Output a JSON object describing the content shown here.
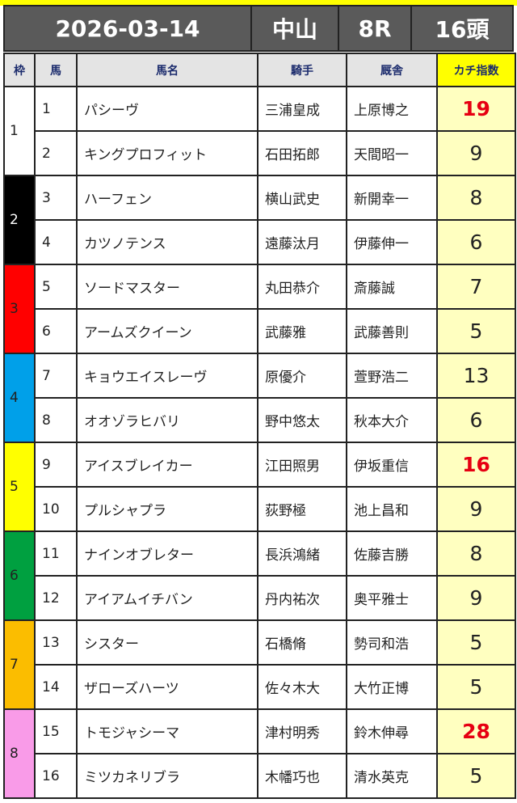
{
  "header": {
    "date": "2026-03-14",
    "venue": "中山",
    "race": "8R",
    "runners": "16頭"
  },
  "columns": {
    "waku": "枠",
    "num": "馬",
    "name": "馬名",
    "jockey": "騎手",
    "trainer": "厩舎",
    "index": "カチ指数"
  },
  "colors": {
    "waku": {
      "1": "#ffffff",
      "2": "#000000",
      "3": "#ff0000",
      "4": "#00a0e9",
      "5": "#ffff00",
      "6": "#00a040",
      "7": "#fbbd00",
      "8": "#f99be8"
    },
    "highlight": "#e60012",
    "index_bg": "#ffffc0"
  },
  "rows": [
    {
      "waku": "1",
      "num": "1",
      "name": "パシーヴ",
      "jockey": "三浦皇成",
      "trainer": "上原博之",
      "index": "19",
      "highlight": true
    },
    {
      "waku": "1",
      "num": "2",
      "name": "キングプロフィット",
      "jockey": "石田拓郎",
      "trainer": "天間昭一",
      "index": "9"
    },
    {
      "waku": "2",
      "num": "3",
      "name": "ハーフェン",
      "jockey": "横山武史",
      "trainer": "新開幸一",
      "index": "8"
    },
    {
      "waku": "2",
      "num": "4",
      "name": "カツノテンス",
      "jockey": "遠藤汰月",
      "trainer": "伊藤伸一",
      "index": "6"
    },
    {
      "waku": "3",
      "num": "5",
      "name": "ソードマスター",
      "jockey": "丸田恭介",
      "trainer": "斎藤誠",
      "index": "7"
    },
    {
      "waku": "3",
      "num": "6",
      "name": "アームズクイーン",
      "jockey": "武藤雅",
      "trainer": "武藤善則",
      "index": "5"
    },
    {
      "waku": "4",
      "num": "7",
      "name": "キョウエイスレーヴ",
      "jockey": "原優介",
      "trainer": "萱野浩二",
      "index": "13"
    },
    {
      "waku": "4",
      "num": "8",
      "name": "オオゾラヒバリ",
      "jockey": "野中悠太",
      "trainer": "秋本大介",
      "index": "6"
    },
    {
      "waku": "5",
      "num": "9",
      "name": "アイスブレイカー",
      "jockey": "江田照男",
      "trainer": "伊坂重信",
      "index": "16",
      "highlight": true
    },
    {
      "waku": "5",
      "num": "10",
      "name": "プルシャプラ",
      "jockey": "荻野極",
      "trainer": "池上昌和",
      "index": "9"
    },
    {
      "waku": "6",
      "num": "11",
      "name": "ナインオブレター",
      "jockey": "長浜鴻緒",
      "trainer": "佐藤吉勝",
      "index": "8"
    },
    {
      "waku": "6",
      "num": "12",
      "name": "アイアムイチバン",
      "jockey": "丹内祐次",
      "trainer": "奥平雅士",
      "index": "9"
    },
    {
      "waku": "7",
      "num": "13",
      "name": "シスター",
      "jockey": "石橋脩",
      "trainer": "勢司和浩",
      "index": "5"
    },
    {
      "waku": "7",
      "num": "14",
      "name": "ザローズハーツ",
      "jockey": "佐々木大",
      "trainer": "大竹正博",
      "index": "5"
    },
    {
      "waku": "8",
      "num": "15",
      "name": "トモジャシーマ",
      "jockey": "津村明秀",
      "trainer": "鈴木伸尋",
      "index": "28",
      "highlight": true
    },
    {
      "waku": "8",
      "num": "16",
      "name": "ミツカネリブラ",
      "jockey": "木幡巧也",
      "trainer": "清水英克",
      "index": "5"
    }
  ]
}
